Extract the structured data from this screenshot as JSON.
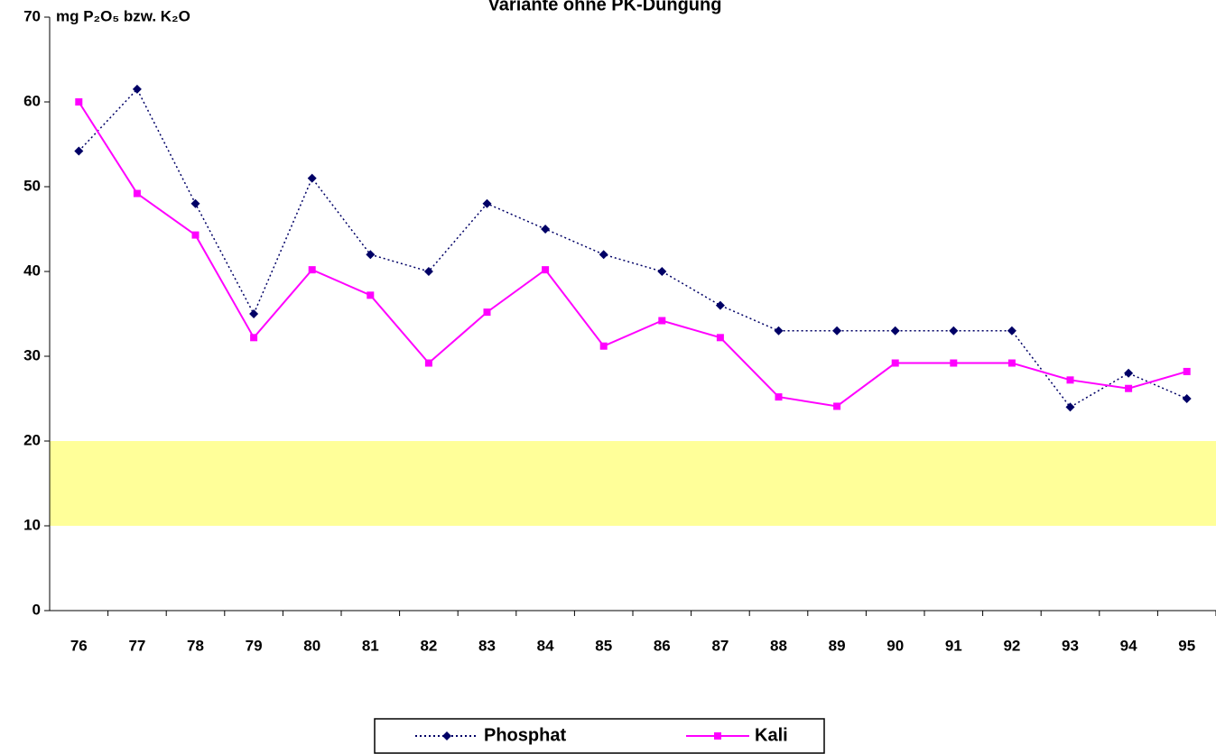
{
  "chart_data": {
    "type": "line",
    "title": "Variante ohne PK-Düngung",
    "y_label": "mg P₂O₅ bzw. K₂O",
    "categories": [
      "76",
      "77",
      "78",
      "79",
      "80",
      "81",
      "82",
      "83",
      "84",
      "85",
      "86",
      "87",
      "88",
      "89",
      "90",
      "91",
      "92",
      "93",
      "94",
      "95"
    ],
    "series": [
      {
        "name": "Phosphat",
        "color": "#000066",
        "line_style": "dotted",
        "marker": "diamond",
        "values": [
          54.2,
          61.5,
          48,
          35,
          51,
          42,
          40,
          48,
          45,
          42,
          40,
          36,
          33,
          33,
          33,
          33,
          33,
          24,
          28,
          25
        ]
      },
      {
        "name": "Kali",
        "color": "#ff00ff",
        "line_style": "solid",
        "marker": "square",
        "values": [
          60,
          49.2,
          44.3,
          32.2,
          40.2,
          37.2,
          29.2,
          35.2,
          40.2,
          31.2,
          34.2,
          32.2,
          25.2,
          24.1,
          29.2,
          29.2,
          29.2,
          27.2,
          26.2,
          28.2
        ]
      }
    ],
    "band": {
      "range": [
        10,
        20
      ],
      "color": "#ffff99"
    },
    "ylim": [
      0,
      70
    ],
    "yticks": [
      0,
      10,
      20,
      30,
      40,
      50,
      60,
      70
    ],
    "legend": "bottom"
  }
}
